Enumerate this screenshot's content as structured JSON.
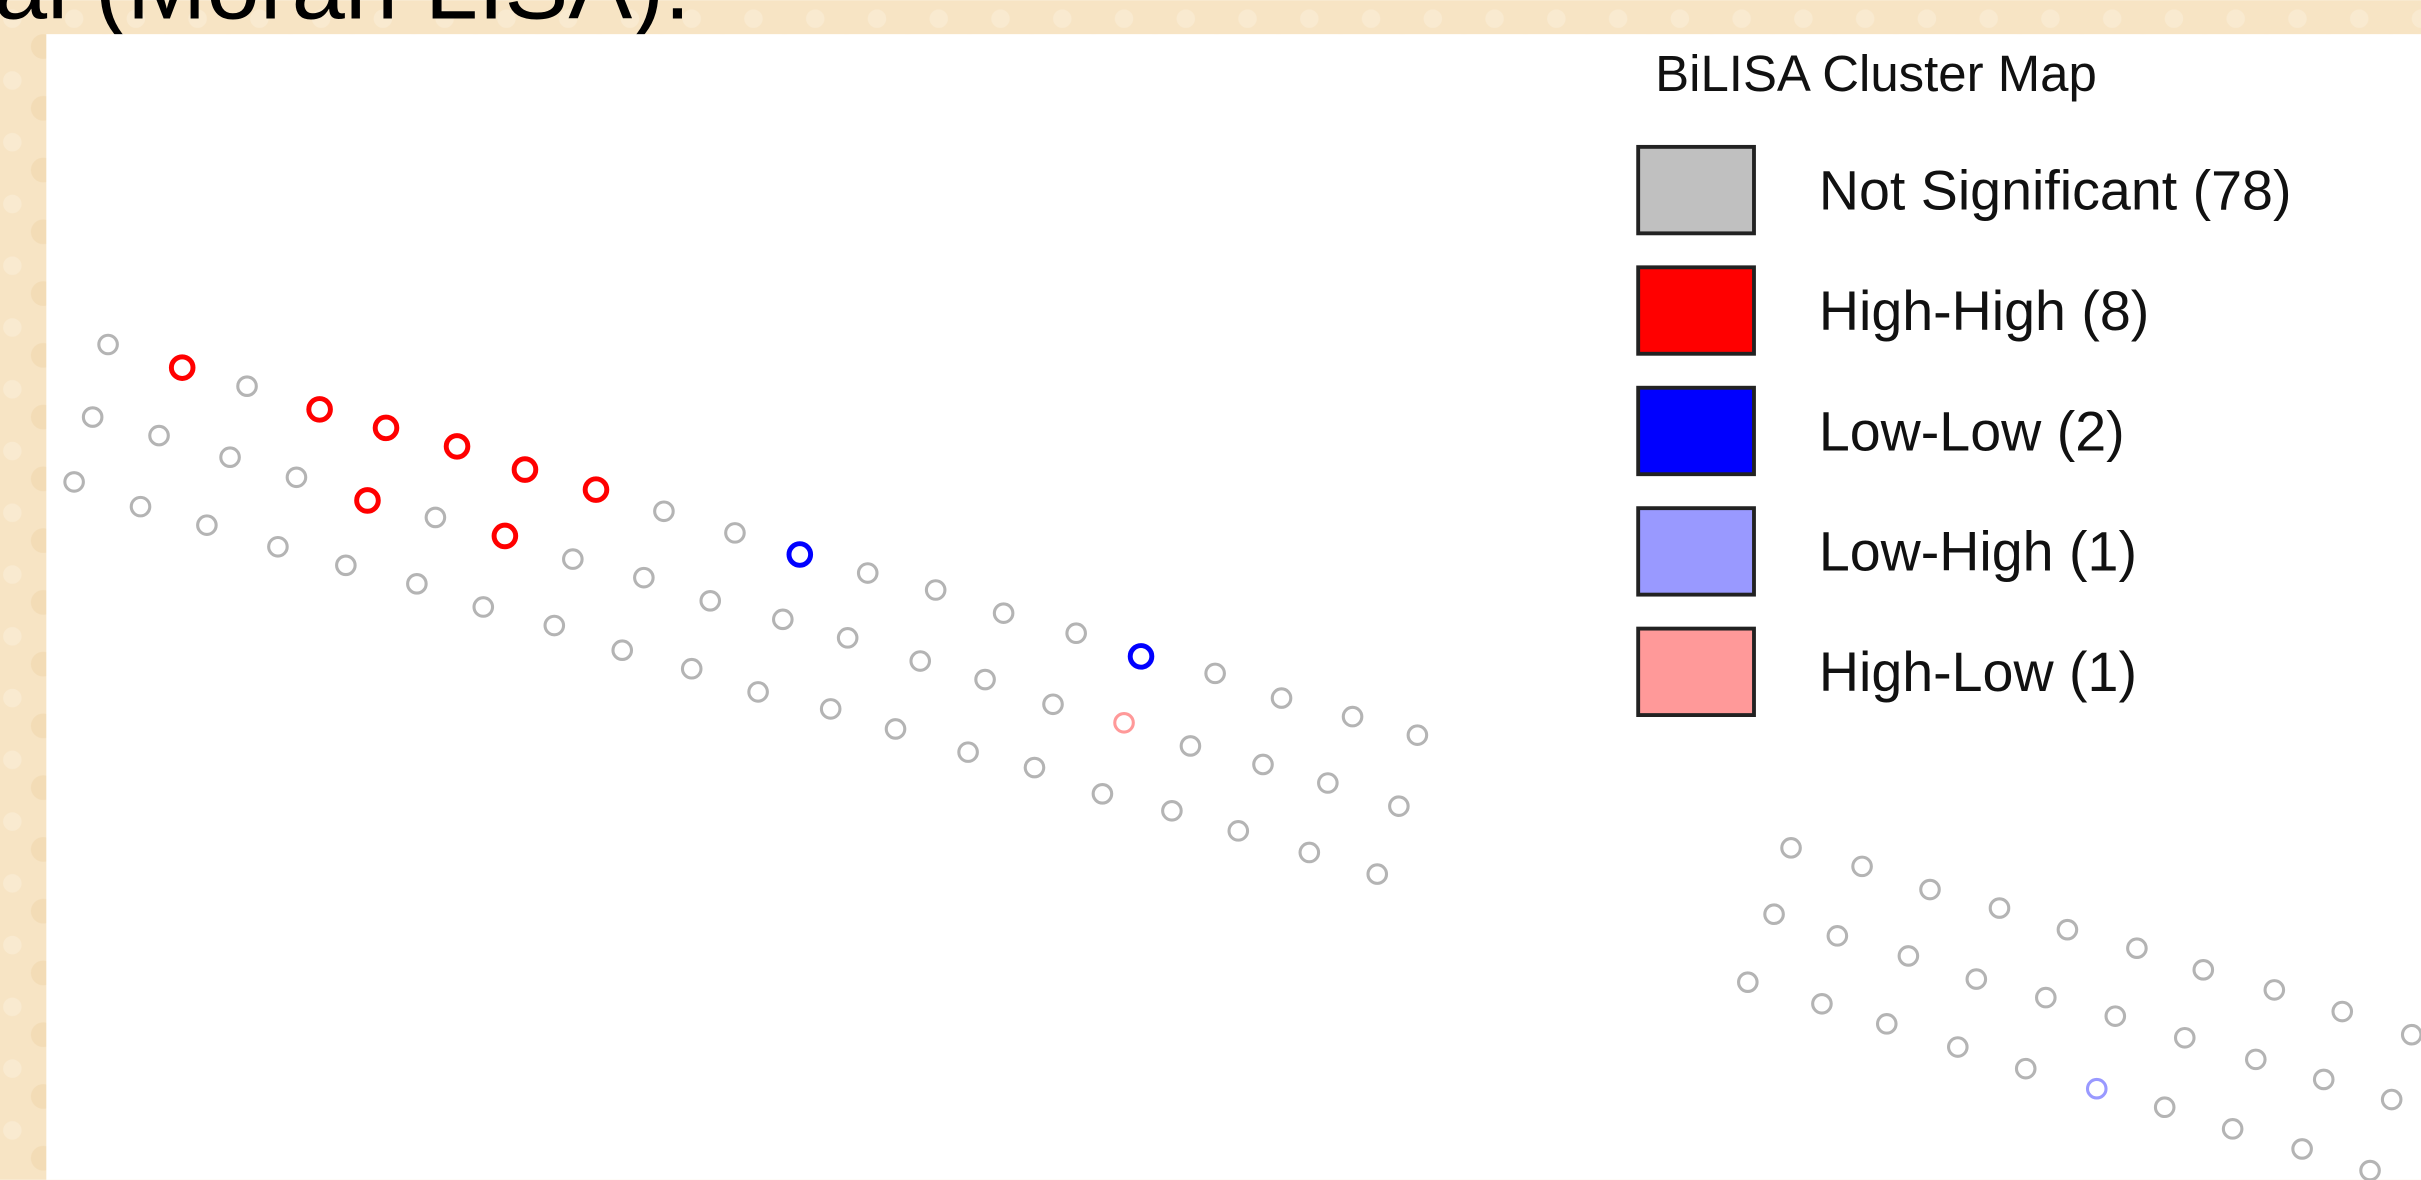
{
  "header": {
    "text": "al (Moran LISA)."
  },
  "legend": {
    "title": "BiLISA Cluster Map",
    "items": [
      {
        "label": "Not Significant (78)",
        "color": "#c0c0c0"
      },
      {
        "label": "High-High (8)",
        "color": "#ff0000"
      },
      {
        "label": "Low-Low (2)",
        "color": "#0000ff"
      },
      {
        "label": "Low-High (1)",
        "color": "#9999ff"
      },
      {
        "label": "High-Low (1)",
        "color": "#ff9999"
      }
    ]
  }
}
